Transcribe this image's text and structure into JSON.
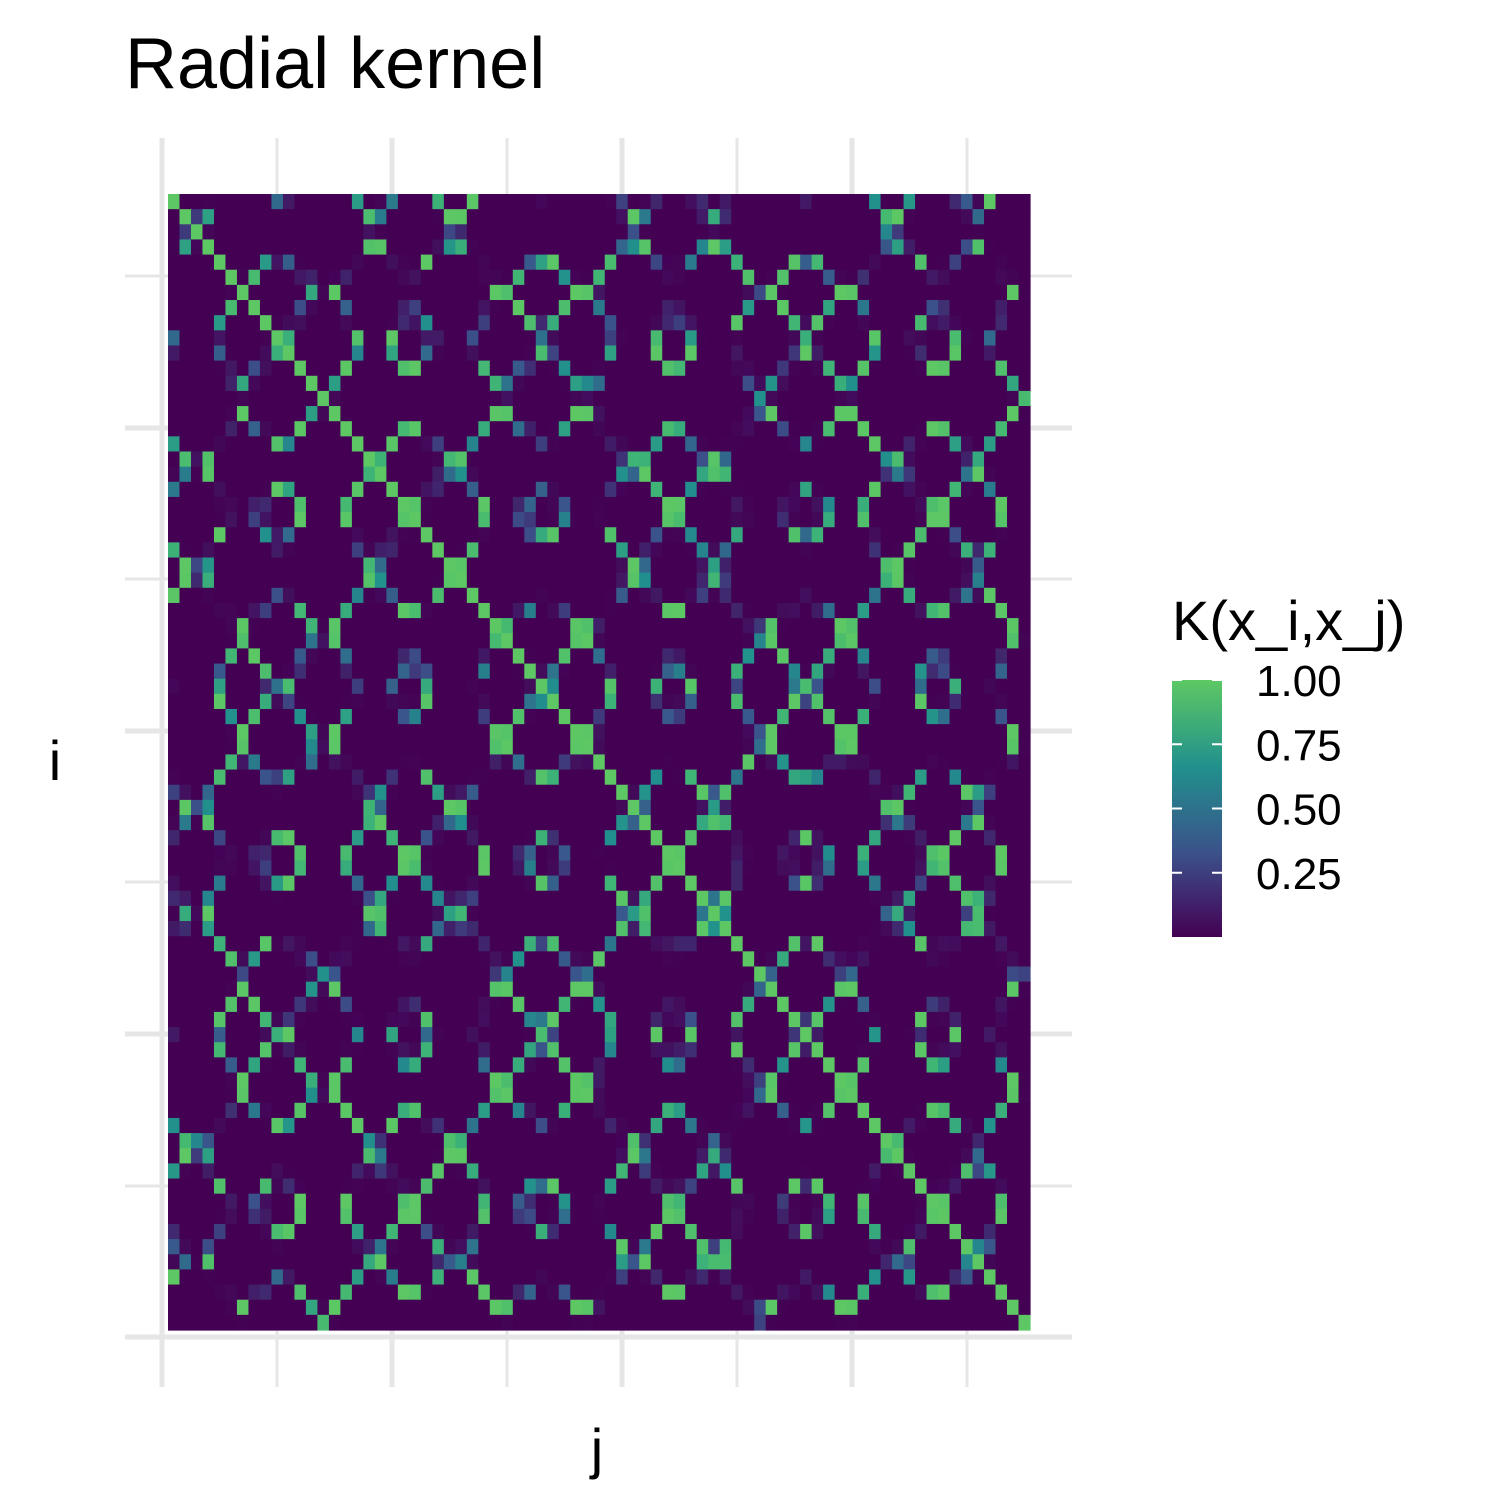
{
  "chart_data": {
    "type": "heatmap",
    "title": "Radial kernel",
    "xlabel": "j",
    "ylabel": "i",
    "n": 75,
    "value_range": [
      0,
      1
    ],
    "legend": {
      "title": "K(x_i,x_j)",
      "placement": "right",
      "ticks": [
        {
          "value": 1.0,
          "label": "1.00"
        },
        {
          "value": 0.75,
          "label": "0.75"
        },
        {
          "value": 0.5,
          "label": "0.50"
        },
        {
          "value": 0.25,
          "label": "0.25"
        }
      ]
    },
    "colormap": [
      "#440154",
      "#3b528b",
      "#21908d",
      "#5dc863"
    ],
    "grid": true,
    "diagonal": "anti-diagonal from top-left to bottom-right is 1.00",
    "structure_note": "symmetric kernel matrix with periodic block structure"
  }
}
